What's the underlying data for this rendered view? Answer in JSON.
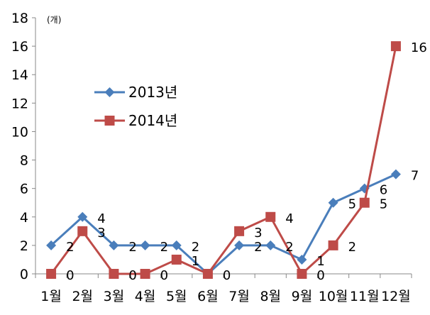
{
  "chart_data": {
    "type": "line",
    "unit_label": "(개)",
    "categories": [
      "1월",
      "2월",
      "3월",
      "4월",
      "5월",
      "6월",
      "7월",
      "8월",
      "9월",
      "10월",
      "11월",
      "12월"
    ],
    "ylim": [
      0,
      18
    ],
    "y_ticks": [
      "0",
      "2",
      "4",
      "6",
      "8",
      "10",
      "12",
      "14",
      "16",
      "18"
    ],
    "grid": false,
    "legend_position": "upper-left-inside",
    "series": [
      {
        "name": "2013년",
        "color": "#4a7ebb",
        "marker": "diamond",
        "values": [
          2,
          4,
          2,
          2,
          2,
          0,
          2,
          2,
          1,
          5,
          6,
          7
        ],
        "labels": [
          "2",
          "4",
          "2",
          "2",
          "2",
          "",
          "2",
          "2",
          "1",
          "5",
          "6",
          "7"
        ]
      },
      {
        "name": "2014년",
        "color": "#be4b48",
        "marker": "square",
        "values": [
          0,
          3,
          0,
          0,
          1,
          0,
          3,
          4,
          0,
          2,
          5,
          16
        ],
        "labels": [
          "0",
          "3",
          "0",
          "0",
          "1",
          "0",
          "3",
          "4",
          "0",
          "2",
          "5",
          "16"
        ]
      }
    ]
  }
}
